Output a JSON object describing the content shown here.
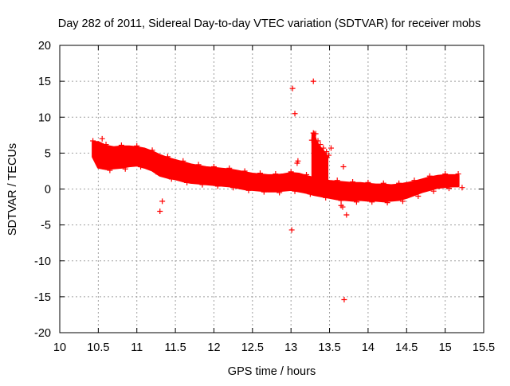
{
  "chart_data": {
    "type": "scatter",
    "title": "Day 282 of 2011, Sidereal Day-to-day VTEC variation (SDTVAR) for receiver mobs",
    "xlabel": "GPS time / hours",
    "ylabel": "SDTVAR / TECUs",
    "xlim": [
      10,
      15.5
    ],
    "ylim": [
      -20,
      20
    ],
    "grid": true,
    "marker": "+",
    "series_color": "#ff0000",
    "x_ticks": [
      "10",
      "10.5",
      "11",
      "11.5",
      "12",
      "12.5",
      "13",
      "13.5",
      "14",
      "14.5",
      "15",
      "15.5"
    ],
    "y_ticks": [
      "20",
      "15",
      "10",
      "5",
      "0",
      "-5",
      "-10",
      "-15",
      "-20"
    ],
    "band": [
      [
        10.43,
        6.5,
        4.5
      ],
      [
        10.5,
        6.5,
        3.0
      ],
      [
        10.6,
        6.0,
        2.8
      ],
      [
        10.7,
        5.8,
        2.9
      ],
      [
        10.8,
        5.9,
        3.0
      ],
      [
        10.9,
        5.9,
        3.2
      ],
      [
        11.0,
        5.8,
        3.3
      ],
      [
        11.1,
        5.6,
        3.0
      ],
      [
        11.2,
        5.2,
        2.6
      ],
      [
        11.3,
        4.7,
        1.9
      ],
      [
        11.4,
        4.3,
        1.6
      ],
      [
        11.5,
        4.0,
        1.4
      ],
      [
        11.6,
        3.7,
        1.1
      ],
      [
        11.7,
        3.4,
        0.9
      ],
      [
        11.8,
        3.2,
        0.8
      ],
      [
        11.9,
        3.0,
        0.7
      ],
      [
        12.0,
        2.9,
        0.6
      ],
      [
        12.1,
        2.8,
        0.5
      ],
      [
        12.2,
        2.7,
        0.4
      ],
      [
        12.3,
        2.5,
        0.2
      ],
      [
        12.4,
        2.3,
        0.0
      ],
      [
        12.5,
        2.1,
        -0.1
      ],
      [
        12.6,
        2.0,
        -0.2
      ],
      [
        12.7,
        1.9,
        -0.3
      ],
      [
        12.8,
        1.9,
        -0.3
      ],
      [
        12.9,
        2.0,
        -0.2
      ],
      [
        13.0,
        2.2,
        -0.1
      ],
      [
        13.1,
        2.1,
        -0.3
      ],
      [
        13.2,
        1.8,
        -0.5
      ],
      [
        13.3,
        1.5,
        -0.8
      ],
      [
        13.4,
        1.3,
        -1.0
      ],
      [
        13.5,
        1.1,
        -1.2
      ],
      [
        13.6,
        1.0,
        -1.4
      ],
      [
        13.7,
        0.9,
        -1.5
      ],
      [
        13.8,
        0.8,
        -1.6
      ],
      [
        13.9,
        0.8,
        -1.5
      ],
      [
        14.0,
        0.7,
        -1.6
      ],
      [
        14.1,
        0.6,
        -1.6
      ],
      [
        14.2,
        0.6,
        -1.7
      ],
      [
        14.3,
        0.5,
        -1.6
      ],
      [
        14.4,
        0.6,
        -1.5
      ],
      [
        14.5,
        0.8,
        -1.2
      ],
      [
        14.6,
        1.0,
        -0.8
      ],
      [
        14.7,
        1.3,
        -0.4
      ],
      [
        14.8,
        1.6,
        -0.1
      ],
      [
        14.9,
        1.8,
        0.2
      ],
      [
        15.0,
        1.9,
        0.3
      ],
      [
        15.1,
        1.9,
        0.4
      ],
      [
        15.17,
        1.9,
        0.4
      ]
    ],
    "spike_band": [
      [
        13.28,
        7.5,
        1.0
      ],
      [
        13.3,
        7.5,
        0.5
      ],
      [
        13.33,
        6.5,
        0.5
      ],
      [
        13.36,
        6.0,
        0.8
      ],
      [
        13.4,
        5.5,
        1.0
      ],
      [
        13.44,
        5.0,
        1.2
      ],
      [
        13.47,
        4.5,
        1.0
      ]
    ],
    "outliers": [
      [
        13.02,
        14.0
      ],
      [
        13.29,
        15.0
      ],
      [
        13.05,
        10.5
      ],
      [
        13.08,
        3.6
      ],
      [
        13.09,
        3.9
      ],
      [
        11.3,
        -3.1
      ],
      [
        11.33,
        -1.7
      ],
      [
        13.01,
        -5.7
      ],
      [
        13.69,
        -15.4
      ],
      [
        13.72,
        -3.6
      ],
      [
        13.67,
        -2.5
      ],
      [
        13.65,
        -2.3
      ],
      [
        13.68,
        3.1
      ],
      [
        13.52,
        5.7
      ],
      [
        10.55,
        7.0
      ],
      [
        13.29,
        7.8
      ],
      [
        13.27,
        6.8
      ]
    ]
  }
}
